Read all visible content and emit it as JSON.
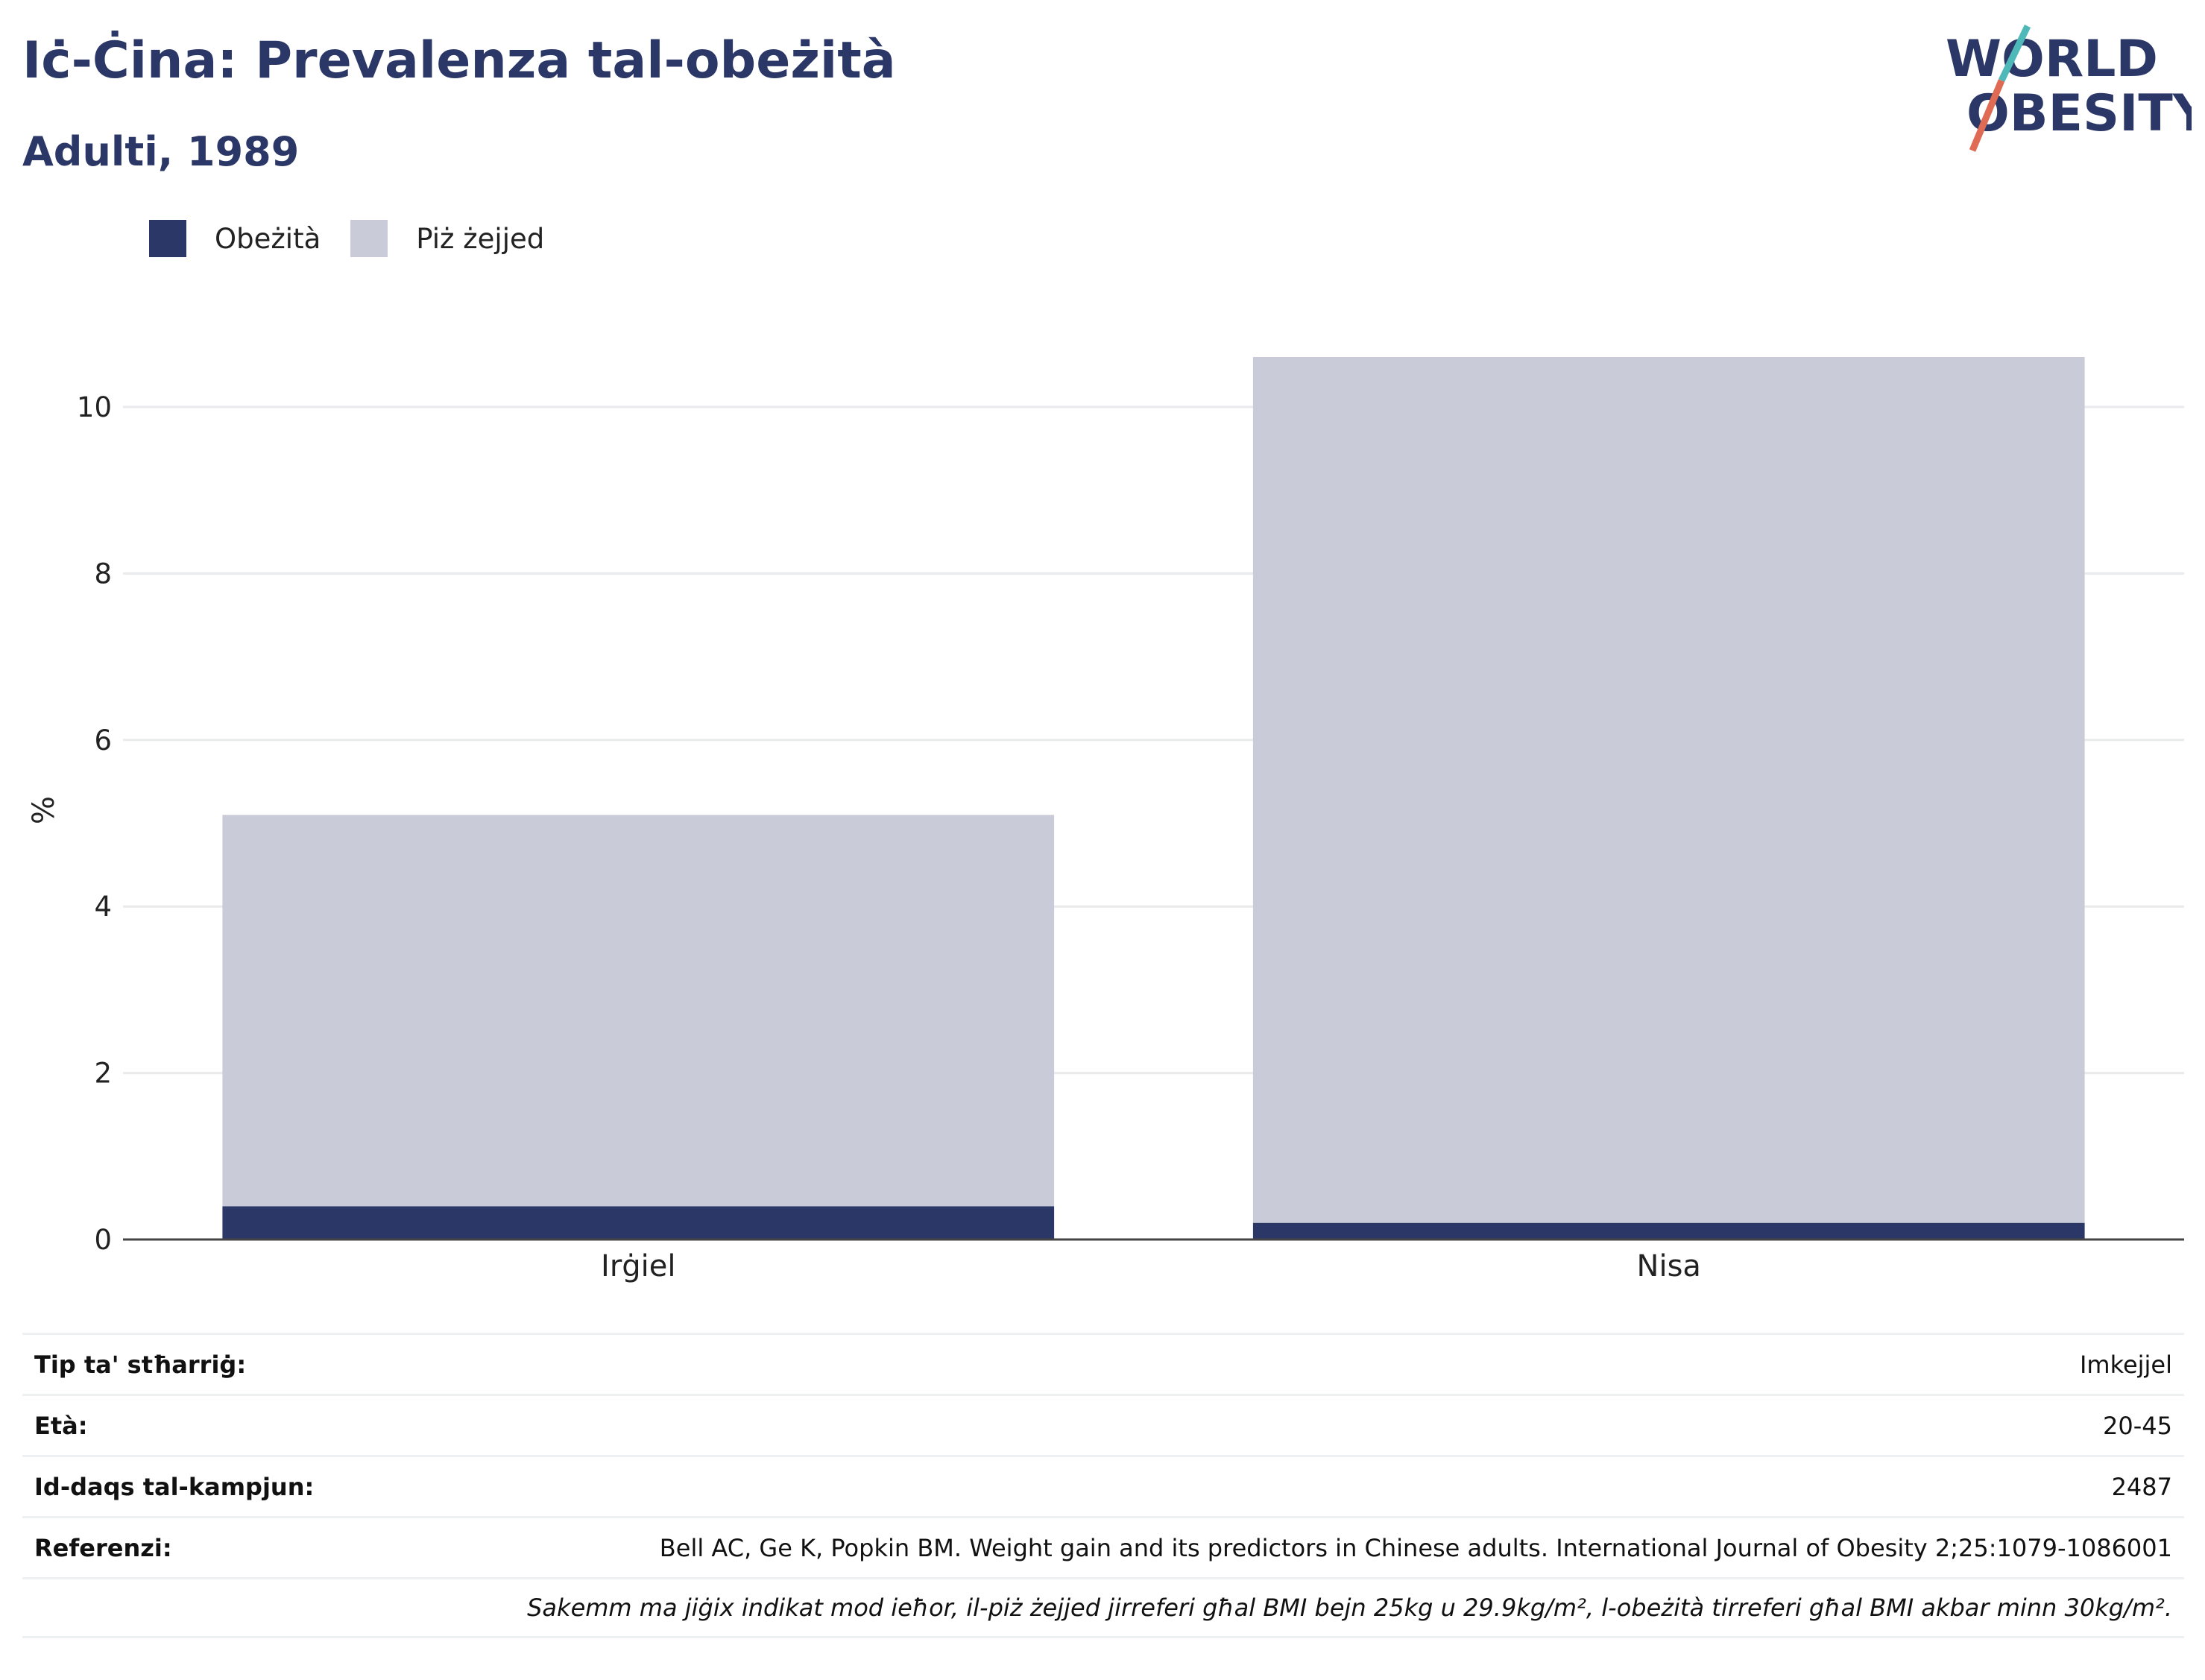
{
  "header": {
    "title": "Iċ-Ċina: Prevalenza tal-obeżità",
    "subtitle": "Adulti, 1989"
  },
  "logo": {
    "line1": "WORLD",
    "line2": "OBESITY",
    "colors": {
      "text": "#2b3766",
      "slash_top": "#4fb8b8",
      "slash_bottom": "#e06b55"
    }
  },
  "legend": [
    {
      "label": "Obeżità",
      "color": "#2b3766"
    },
    {
      "label": "Piż żejjed",
      "color": "#c9ccd8"
    }
  ],
  "chart_data": {
    "type": "bar",
    "stacked": true,
    "categories": [
      "Irġiel",
      "Nisa"
    ],
    "series": [
      {
        "name": "Obeżità",
        "values": [
          0.4,
          0.2
        ],
        "color": "#2b3766"
      },
      {
        "name": "Piż żejjed",
        "values": [
          4.7,
          10.4
        ],
        "color": "#c9ccd8"
      }
    ],
    "ylabel": "%",
    "ylim": [
      0,
      11
    ],
    "yticks": [
      0,
      2,
      4,
      6,
      8,
      10
    ],
    "grid": true
  },
  "info": {
    "rows": [
      {
        "key": "Tip ta' stħarriġ:",
        "value": "Imkejjel"
      },
      {
        "key": "Età:",
        "value": "20-45"
      },
      {
        "key": "Id-daqs tal-kampjun:",
        "value": "2487"
      },
      {
        "key": "Referenzi:",
        "value": "Bell AC, Ge K, Popkin BM. Weight gain and its predictors in Chinese adults. International Journal of Obesity 2;25:1079-1086001"
      }
    ],
    "note": "Sakemm ma jiġix indikat mod ieħor, il-piż żejjed jirreferi għal BMI bejn 25kg u 29.9kg/m², l-obeżità tirreferi għal BMI akbar minn 30kg/m²."
  }
}
